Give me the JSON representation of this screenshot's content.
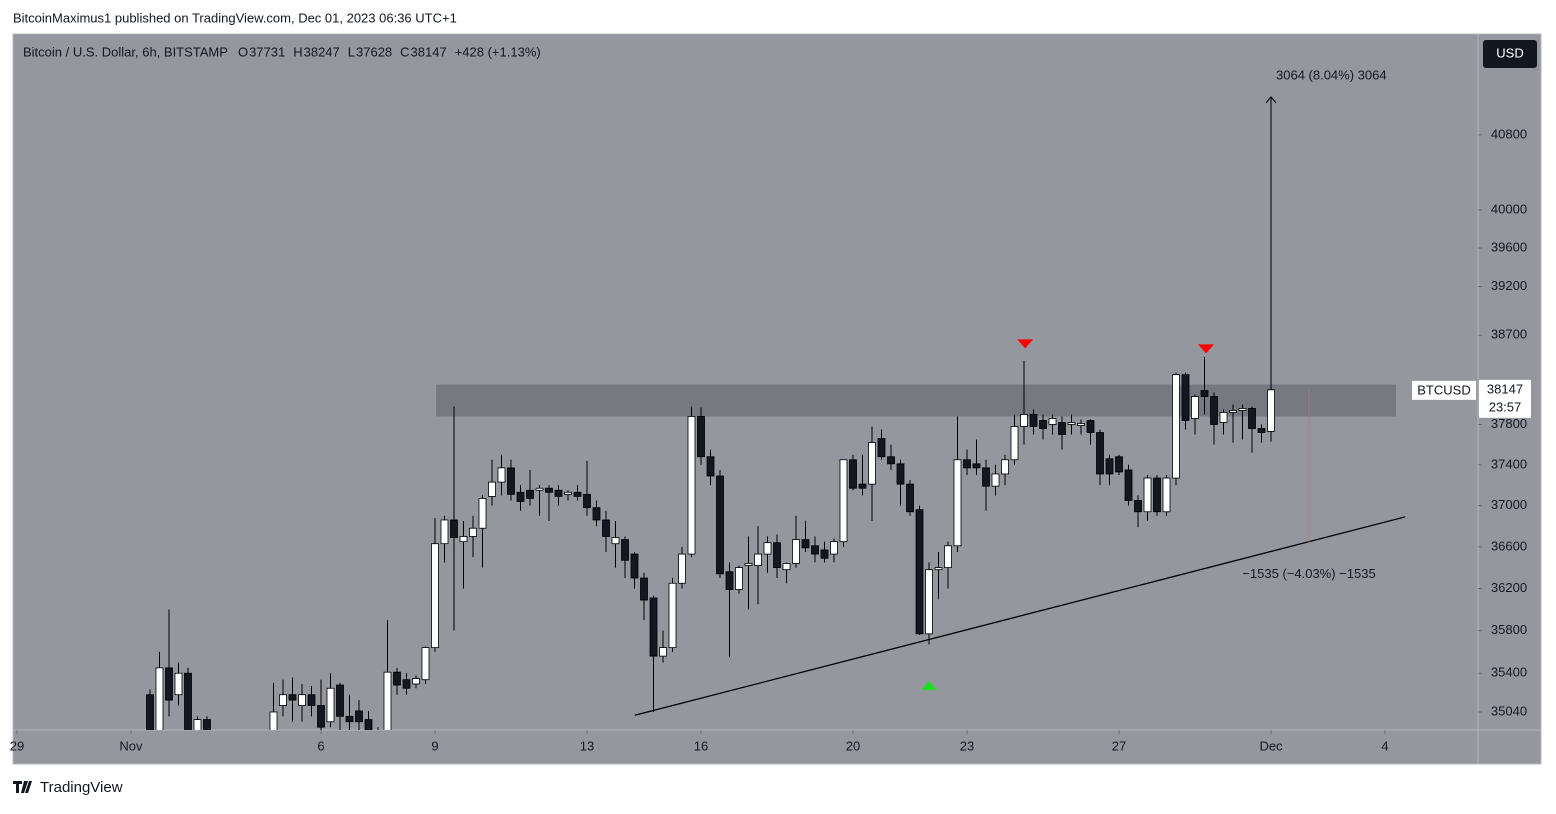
{
  "header": "BitcoinMaximus1 published on TradingView.com, Dec 01, 2023 06:36 UTC+1",
  "footer": "TradingView",
  "chart_data": {
    "type": "candlestick",
    "title": "Bitcoin / U.S. Dollar, 6h, BITSTAMP",
    "ohlc_legend": [
      {
        "label": "O",
        "value": 37731
      },
      {
        "label": "H",
        "value": 38247
      },
      {
        "label": "L",
        "value": 37628
      },
      {
        "label": "C",
        "value": 38147
      }
    ],
    "change": "+428 (+1.13%)",
    "currency": "USD",
    "symbol_label": "BTCUSD",
    "last_price": 38147,
    "countdown": "23:57",
    "log_scale": true,
    "grid": false,
    "up_color": "#ffffff",
    "down_color": "#131722",
    "xlim": [
      -0.105,
      38.447
    ],
    "ylim": [
      34874,
      41900
    ],
    "xticks": [
      {
        "value": 0,
        "label": "29"
      },
      {
        "value": 3,
        "label": "Nov"
      },
      {
        "value": 8,
        "label": "6"
      },
      {
        "value": 11,
        "label": "9"
      },
      {
        "value": 15,
        "label": "13"
      },
      {
        "value": 18,
        "label": "16"
      },
      {
        "value": 22,
        "label": "20"
      },
      {
        "value": 25,
        "label": "23"
      },
      {
        "value": 29,
        "label": "27"
      },
      {
        "value": 33,
        "label": "Dec"
      },
      {
        "value": 36,
        "label": "4"
      }
    ],
    "yticks": [
      35040,
      35400,
      35800,
      36200,
      36600,
      37000,
      37400,
      37800,
      38700,
      39200,
      39600,
      40000,
      40800
    ],
    "x": [
      3.5,
      3.75,
      4,
      4.25,
      4.5,
      4.75,
      5,
      5.25,
      5.5,
      5.75,
      6,
      6.25,
      6.5,
      6.75,
      7,
      7.25,
      7.5,
      7.75,
      8,
      8.25,
      8.5,
      8.75,
      9,
      9.25,
      9.5,
      9.75,
      10,
      10.25,
      10.5,
      10.75,
      11,
      11.25,
      11.5,
      11.75,
      12,
      12.25,
      12.5,
      12.75,
      13,
      13.25,
      13.5,
      13.75,
      14,
      14.25,
      14.5,
      14.75,
      15,
      15.25,
      15.5,
      15.75,
      16,
      16.25,
      16.5,
      16.75,
      17,
      17.25,
      17.5,
      17.75,
      18,
      18.25,
      18.5,
      18.75,
      19,
      19.25,
      19.5,
      19.75,
      20,
      20.25,
      20.5,
      20.75,
      21,
      21.25,
      21.5,
      21.75,
      22,
      22.25,
      22.5,
      22.75,
      23,
      23.25,
      23.5,
      23.75,
      24,
      24.25,
      24.5,
      24.75,
      25,
      25.25,
      25.5,
      25.75,
      26,
      26.25,
      26.5,
      26.75,
      27,
      27.25,
      27.5,
      27.75,
      28,
      28.25,
      28.5,
      28.75,
      29,
      29.25,
      29.5,
      29.75,
      30,
      30.25,
      30.5,
      30.75,
      31,
      31.25,
      31.5,
      31.75,
      32,
      32.25,
      32.5,
      32.75,
      33
    ],
    "open": [
      35200,
      34870,
      35450,
      35200,
      35400,
      34850,
      34970,
      34800,
      34600,
      34500,
      34550,
      34650,
      34700,
      34800,
      35100,
      35200,
      35100,
      35200,
      35100,
      34950,
      35290,
      35000,
      35050,
      34970,
      34870,
      34800,
      35410,
      35340,
      35300,
      35340,
      35640,
      36630,
      36860,
      36650,
      36700,
      36780,
      37090,
      37230,
      37370,
      37130,
      37150,
      37150,
      37170,
      37150,
      37110,
      37130,
      37110,
      36980,
      36860,
      36630,
      36670,
      36530,
      36300,
      36110,
      35560,
      35640,
      36250,
      36530,
      37880,
      37480,
      37290,
      36360,
      36190,
      36420,
      36420,
      36530,
      36640,
      36380,
      36440,
      36670,
      36610,
      36570,
      36530,
      36650,
      37450,
      37210,
      37210,
      37660,
      37480,
      37410,
      37210,
      36960,
      35770,
      36380,
      36400,
      36610,
      37450,
      37410,
      37370,
      37190,
      37310,
      37450,
      37780,
      37900,
      37840,
      37800,
      37820,
      37800,
      37790,
      37840,
      37720,
      37460,
      37480,
      37350,
      37050,
      36940,
      37270,
      36940,
      37270,
      38300,
      37860,
      38140,
      38080,
      37820,
      37920,
      37940,
      37960,
      37760,
      37731
    ],
    "high": [
      35250,
      35600,
      36000,
      35500,
      35450,
      35000,
      35000,
      34850,
      34700,
      34650,
      34700,
      34800,
      34850,
      35310,
      35340,
      35360,
      35300,
      35280,
      35340,
      35400,
      35310,
      35200,
      35150,
      35050,
      34900,
      35900,
      35450,
      35400,
      35380,
      35650,
      36880,
      36900,
      37980,
      36850,
      36900,
      37100,
      37450,
      37500,
      37450,
      37200,
      37350,
      37200,
      37200,
      37200,
      37150,
      37200,
      37440,
      37050,
      36950,
      36850,
      36700,
      36550,
      36350,
      36130,
      35800,
      36300,
      36600,
      37980,
      37970,
      37550,
      37350,
      36450,
      36420,
      36700,
      36800,
      36700,
      36720,
      36450,
      36900,
      36850,
      36700,
      36650,
      36680,
      37450,
      37500,
      37500,
      37780,
      37750,
      37600,
      37450,
      37250,
      37000,
      36450,
      36550,
      36650,
      37880,
      37550,
      37650,
      37450,
      37400,
      37500,
      37900,
      38440,
      37950,
      37900,
      37900,
      37880,
      37900,
      37850,
      37850,
      37750,
      37500,
      37500,
      37400,
      37100,
      37300,
      37300,
      37300,
      38320,
      38320,
      38100,
      38480,
      38120,
      37950,
      38000,
      38000,
      37980,
      37800,
      38247
    ],
    "low": [
      34700,
      34800,
      35000,
      35100,
      34600,
      34700,
      34600,
      34500,
      34400,
      34350,
      34450,
      34550,
      34600,
      34700,
      35000,
      34950,
      34950,
      35000,
      34800,
      34900,
      34850,
      34870,
      34800,
      34700,
      34600,
      34750,
      35200,
      35200,
      35260,
      35300,
      35600,
      36450,
      35800,
      36200,
      36500,
      36400,
      37000,
      37100,
      37050,
      36950,
      37000,
      36900,
      36850,
      37000,
      37050,
      37050,
      36900,
      36800,
      36550,
      36400,
      36300,
      36200,
      35900,
      35040,
      35500,
      35600,
      36200,
      36500,
      37400,
      37200,
      36300,
      35550,
      36150,
      36000,
      36050,
      36350,
      36300,
      36250,
      36400,
      36550,
      36450,
      36450,
      36450,
      36600,
      37150,
      37100,
      36850,
      37450,
      37350,
      37000,
      36900,
      35760,
      35670,
      36100,
      36200,
      36550,
      37300,
      37300,
      36950,
      37100,
      37200,
      37400,
      37600,
      37700,
      37650,
      37700,
      37550,
      37700,
      37700,
      37600,
      37200,
      37200,
      37300,
      37000,
      36790,
      36850,
      36900,
      36900,
      37200,
      37750,
      37700,
      37900,
      37600,
      37700,
      37620,
      37650,
      37520,
      37620,
      37628
    ],
    "close": [
      34870,
      35450,
      35150,
      35400,
      34800,
      34970,
      34800,
      34600,
      34500,
      34550,
      34650,
      34700,
      34800,
      35040,
      35200,
      35150,
      35200,
      35100,
      34900,
      35260,
      35000,
      34950,
      34950,
      34870,
      34750,
      35410,
      35290,
      35260,
      35350,
      35640,
      36630,
      36860,
      36690,
      36700,
      36780,
      37070,
      37230,
      37370,
      37110,
      37040,
      37070,
      37170,
      37130,
      37090,
      37130,
      37090,
      36980,
      36860,
      36700,
      36690,
      36470,
      36300,
      36090,
      35560,
      35640,
      36250,
      36530,
      37880,
      37480,
      37290,
      36340,
      36190,
      36400,
      36440,
      36530,
      36640,
      36400,
      36440,
      36670,
      36590,
      36530,
      36490,
      36650,
      37450,
      37170,
      37170,
      37620,
      37480,
      37410,
      37210,
      36940,
      35770,
      36380,
      36400,
      36610,
      37450,
      37370,
      37370,
      37190,
      37310,
      37450,
      37780,
      37900,
      37780,
      37760,
      37860,
      37700,
      37820,
      37810,
      37720,
      37310,
      37310,
      37330,
      37050,
      36940,
      37270,
      36940,
      37270,
      38300,
      37840,
      38080,
      38080,
      37800,
      37920,
      37940,
      37960,
      37760,
      37720,
      38147
    ],
    "zone": {
      "x": [
        11.03,
        36.29
      ],
      "y": [
        37880,
        38200
      ],
      "color": "#5d6068"
    },
    "trendline": {
      "x": [
        16.26,
        36.53
      ],
      "y": [
        35010,
        36890
      ],
      "color": "#000000"
    },
    "markers": [
      {
        "x": 26.53,
        "y": 38617,
        "color": "#ff0000",
        "direction": "down"
      },
      {
        "x": 31.29,
        "y": 38566,
        "color": "#ff0000",
        "direction": "down"
      },
      {
        "x": 24,
        "y": 35281,
        "color": "#22dd22",
        "direction": "up"
      }
    ],
    "measures": [
      {
        "label": "3064 (8.04%) 3064",
        "x": 33,
        "from": 38147,
        "to": 41211
      },
      {
        "label": "−1535 (−4.03%) −1535",
        "x": 34,
        "from": 38147,
        "to": 36612
      }
    ]
  }
}
